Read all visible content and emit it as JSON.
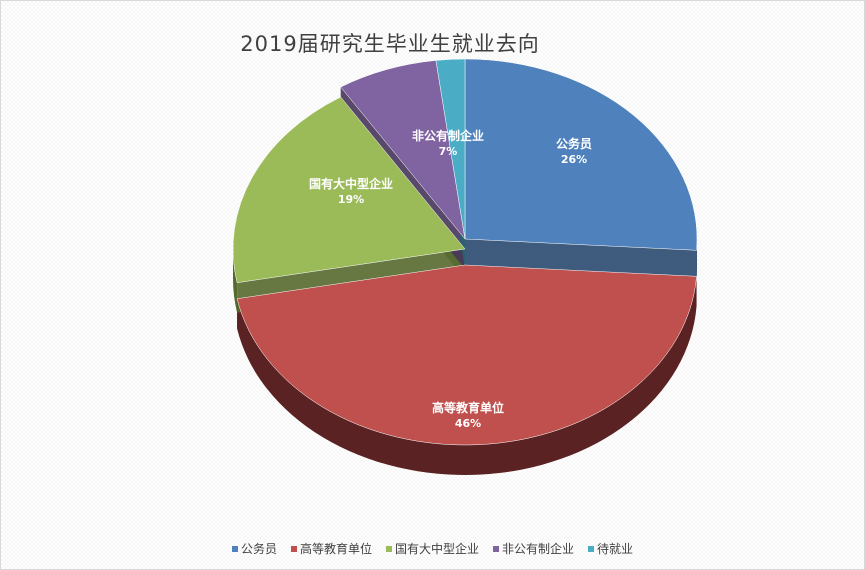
{
  "chart_data": {
    "type": "pie",
    "title": "2019届研究生毕业生就业去向",
    "style": "3d-exploded",
    "categories": [
      "公务员",
      "高等教育单位",
      "国有大中型企业",
      "非公有制企业",
      "待就业"
    ],
    "values": [
      26,
      46,
      19,
      7,
      2
    ],
    "data_labels": [
      {
        "name": "公务员",
        "pct": "26%"
      },
      {
        "name": "高等教育单位",
        "pct": "46%"
      },
      {
        "name": "国有大中型企业",
        "pct": "19%"
      },
      {
        "name": "非公有制企业",
        "pct": "7%"
      },
      {
        "name": "",
        "pct": ""
      }
    ],
    "colors": [
      "#4f81bd",
      "#c0504d",
      "#9bbb59",
      "#8064a2",
      "#4bacc6"
    ],
    "side_colors": [
      "#2a4a70",
      "#5a2222",
      "#56692f",
      "#47365c",
      "#2a6573"
    ],
    "legend_position": "bottom"
  }
}
